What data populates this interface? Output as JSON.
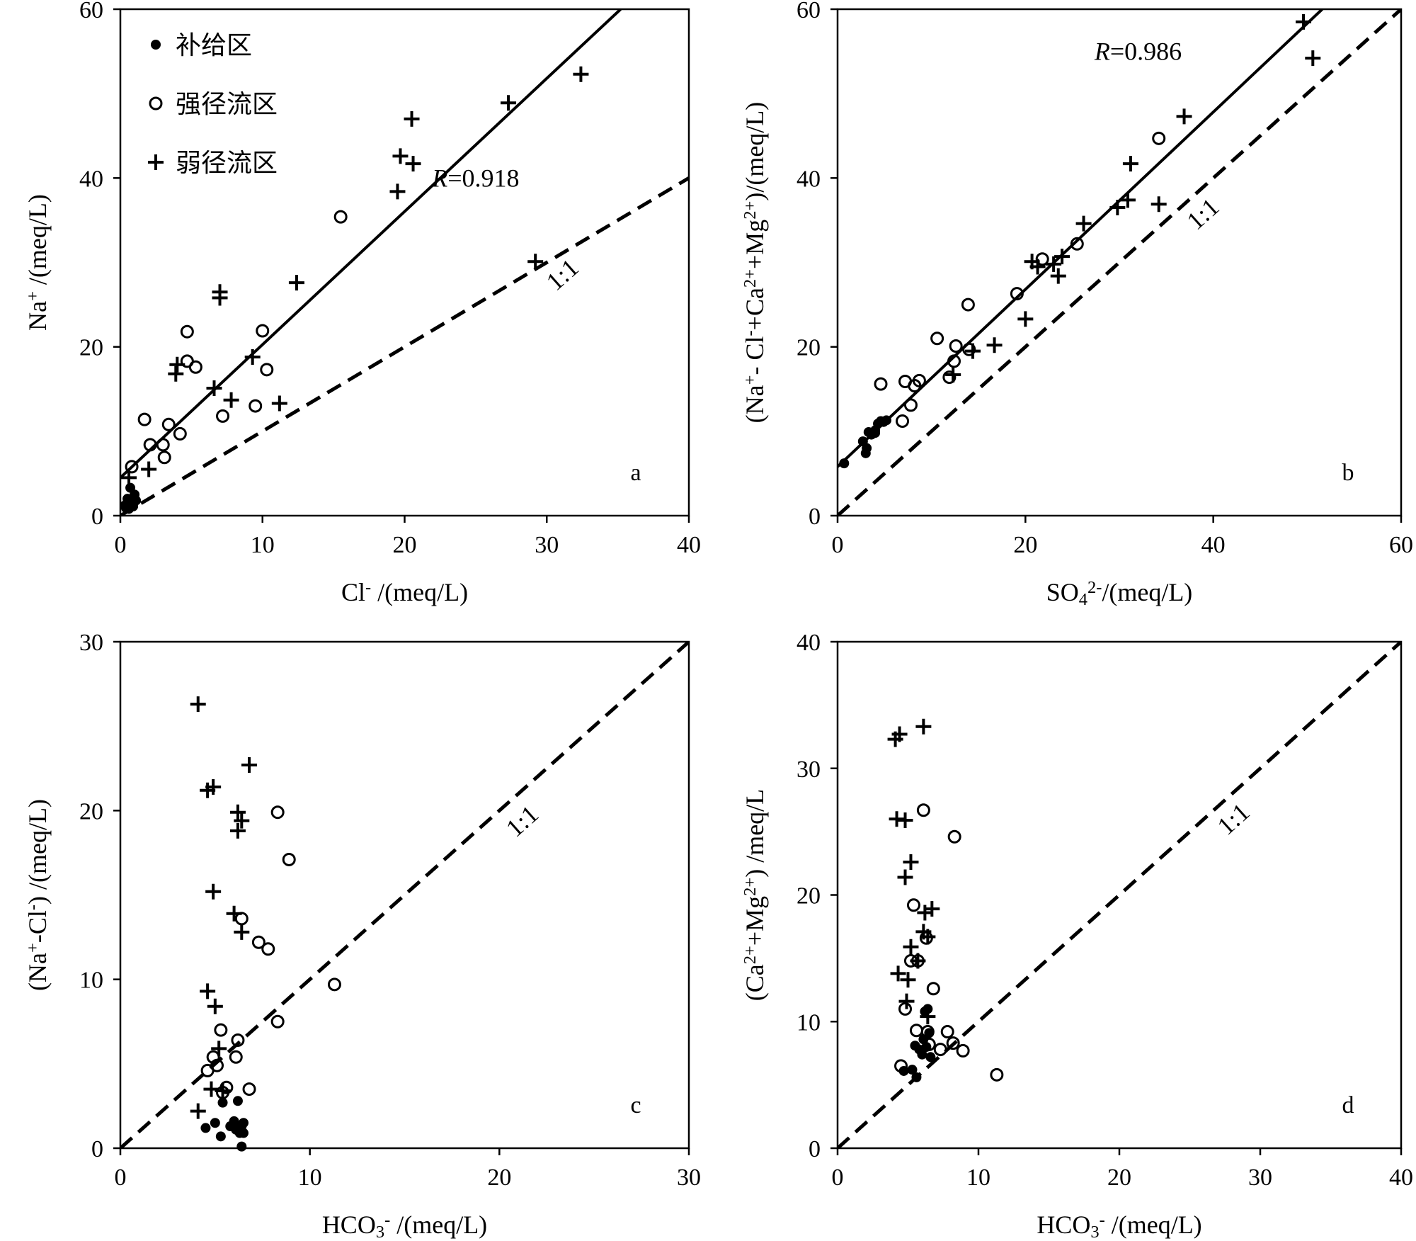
{
  "chart_data": [
    {
      "id": "a",
      "type": "scatter",
      "panel_label": "a",
      "xlabel": "Cl⁻ /(meq/L)",
      "ylabel": "Na⁺ /(meq/L)",
      "xlim": [
        0,
        40
      ],
      "ylim": [
        0,
        60
      ],
      "xticks": [
        "0",
        "10",
        "20",
        "30",
        "40"
      ],
      "yticks": [
        "0",
        "20",
        "40",
        "60"
      ],
      "legend": {
        "position": "top-left",
        "items": [
          {
            "marker": "filled-circle",
            "label": "补给区"
          },
          {
            "marker": "open-circle",
            "label": "强径流区"
          },
          {
            "marker": "plus",
            "label": "弱径流区"
          }
        ]
      },
      "annotations": [
        {
          "text": "R=0.918",
          "x": 25.0,
          "y": 39.0
        },
        {
          "text": "1:1",
          "x": 31.5,
          "y": 27.8,
          "rotate": true
        }
      ],
      "lines": [
        {
          "style": "solid",
          "x": [
            0,
            35.2
          ],
          "y": [
            4.5,
            60
          ]
        },
        {
          "style": "dashed",
          "x": [
            0,
            40
          ],
          "y": [
            0,
            40
          ]
        }
      ],
      "series": [
        {
          "marker": "filled-circle",
          "points": [
            [
              0.3,
              1.2
            ],
            [
              0.5,
              2.0
            ],
            [
              0.6,
              0.8
            ],
            [
              0.8,
              1.6
            ],
            [
              0.7,
              3.3
            ],
            [
              1.0,
              2.5
            ],
            [
              1.1,
              1.8
            ],
            [
              0.4,
              0.9
            ],
            [
              0.9,
              1.1
            ],
            [
              0.5,
              1.5
            ]
          ]
        },
        {
          "marker": "open-circle",
          "points": [
            [
              0.8,
              5.8
            ],
            [
              1.7,
              11.4
            ],
            [
              2.1,
              8.4
            ],
            [
              3.0,
              8.4
            ],
            [
              3.1,
              6.9
            ],
            [
              3.4,
              10.8
            ],
            [
              4.2,
              9.7
            ],
            [
              4.7,
              18.3
            ],
            [
              4.7,
              21.8
            ],
            [
              5.3,
              17.6
            ],
            [
              7.2,
              11.8
            ],
            [
              9.5,
              13.0
            ],
            [
              10.0,
              21.9
            ],
            [
              10.3,
              17.3
            ],
            [
              15.5,
              35.4
            ]
          ]
        },
        {
          "marker": "plus",
          "points": [
            [
              0.6,
              4.5
            ],
            [
              2.0,
              5.5
            ],
            [
              3.9,
              16.8
            ],
            [
              4.0,
              17.9
            ],
            [
              6.6,
              15.1
            ],
            [
              7.0,
              25.8
            ],
            [
              7.0,
              26.5
            ],
            [
              7.8,
              13.7
            ],
            [
              9.3,
              18.8
            ],
            [
              11.2,
              13.3
            ],
            [
              12.4,
              27.6
            ],
            [
              19.5,
              38.4
            ],
            [
              19.7,
              42.6
            ],
            [
              20.5,
              47.0
            ],
            [
              20.6,
              41.7
            ],
            [
              27.3,
              48.9
            ],
            [
              29.2,
              30.1
            ],
            [
              32.4,
              52.3
            ]
          ]
        }
      ]
    },
    {
      "id": "b",
      "type": "scatter",
      "panel_label": "b",
      "xlabel": "SO₄²⁻/(meq/L)",
      "ylabel": "(Na⁺- Cl⁻+Ca²⁺+Mg²⁺)/(meq/L)",
      "xlim": [
        0,
        60
      ],
      "ylim": [
        0,
        60
      ],
      "xticks": [
        "0",
        "20",
        "40",
        "60"
      ],
      "yticks": [
        "0",
        "20",
        "40",
        "60"
      ],
      "annotations": [
        {
          "text": "R=0.986",
          "x": 32.0,
          "y": 54.0
        },
        {
          "text": "1:1",
          "x": 39.5,
          "y": 35.0,
          "rotate": true
        }
      ],
      "lines": [
        {
          "style": "solid",
          "x": [
            0,
            51.6
          ],
          "y": [
            5.8,
            60
          ]
        },
        {
          "style": "dashed",
          "x": [
            0,
            60
          ],
          "y": [
            0,
            60
          ]
        }
      ],
      "series": [
        {
          "marker": "filled-circle",
          "points": [
            [
              0.7,
              6.2
            ],
            [
              2.7,
              8.8
            ],
            [
              3.0,
              7.4
            ],
            [
              3.1,
              8.0
            ],
            [
              3.3,
              9.9
            ],
            [
              3.6,
              9.6
            ],
            [
              4.0,
              10.1
            ],
            [
              4.3,
              10.9
            ],
            [
              4.6,
              11.2
            ],
            [
              4.9,
              11.1
            ],
            [
              5.2,
              11.3
            ],
            [
              4.0,
              9.8
            ]
          ]
        },
        {
          "marker": "open-circle",
          "points": [
            [
              4.6,
              15.6
            ],
            [
              6.9,
              11.2
            ],
            [
              7.2,
              15.9
            ],
            [
              7.8,
              13.1
            ],
            [
              8.2,
              15.4
            ],
            [
              8.7,
              16.0
            ],
            [
              10.6,
              21.0
            ],
            [
              11.9,
              16.4
            ],
            [
              12.4,
              18.3
            ],
            [
              12.6,
              20.1
            ],
            [
              13.9,
              25.0
            ],
            [
              14.0,
              19.7
            ],
            [
              19.1,
              26.3
            ],
            [
              21.8,
              30.4
            ],
            [
              25.5,
              32.2
            ],
            [
              34.2,
              44.7
            ]
          ]
        },
        {
          "marker": "plus",
          "points": [
            [
              12.3,
              16.7
            ],
            [
              14.4,
              19.5
            ],
            [
              16.7,
              20.2
            ],
            [
              20.0,
              23.3
            ],
            [
              20.7,
              30.1
            ],
            [
              21.3,
              29.5
            ],
            [
              23.0,
              29.8
            ],
            [
              23.5,
              28.4
            ],
            [
              23.9,
              30.7
            ],
            [
              26.2,
              34.6
            ],
            [
              29.8,
              36.5
            ],
            [
              30.9,
              37.4
            ],
            [
              31.2,
              41.7
            ],
            [
              34.2,
              36.9
            ],
            [
              36.9,
              47.3
            ],
            [
              49.6,
              58.5
            ],
            [
              50.6,
              54.2
            ]
          ]
        }
      ]
    },
    {
      "id": "c",
      "type": "scatter",
      "panel_label": "c",
      "xlabel": "HCO₃⁻ /(meq/L)",
      "ylabel": "(Na⁺-Cl⁻) /(meq/L)",
      "xlim": [
        0,
        30
      ],
      "ylim": [
        0,
        30
      ],
      "xticks": [
        "0",
        "10",
        "20",
        "30"
      ],
      "yticks": [
        "0",
        "10",
        "20",
        "30"
      ],
      "annotations": [
        {
          "text": "1:1",
          "x": 21.5,
          "y": 19.0,
          "rotate": true
        }
      ],
      "lines": [
        {
          "style": "dashed",
          "x": [
            0,
            30
          ],
          "y": [
            0,
            30
          ]
        }
      ],
      "series": [
        {
          "marker": "filled-circle",
          "points": [
            [
              4.5,
              1.2
            ],
            [
              5.0,
              1.5
            ],
            [
              5.3,
              0.7
            ],
            [
              5.4,
              2.7
            ],
            [
              5.8,
              1.3
            ],
            [
              6.0,
              1.6
            ],
            [
              6.1,
              1.1
            ],
            [
              6.2,
              2.8
            ],
            [
              6.3,
              0.9
            ],
            [
              6.4,
              1.3
            ],
            [
              6.5,
              0.9
            ],
            [
              6.5,
              1.5
            ],
            [
              6.4,
              0.1
            ]
          ]
        },
        {
          "marker": "open-circle",
          "points": [
            [
              4.6,
              4.6
            ],
            [
              4.9,
              5.4
            ],
            [
              5.1,
              4.9
            ],
            [
              5.4,
              3.3
            ],
            [
              5.3,
              7.0
            ],
            [
              5.6,
              3.6
            ],
            [
              6.1,
              5.4
            ],
            [
              6.2,
              6.4
            ],
            [
              6.4,
              13.6
            ],
            [
              6.8,
              3.5
            ],
            [
              7.3,
              12.2
            ],
            [
              7.8,
              11.8
            ],
            [
              8.3,
              7.5
            ],
            [
              8.3,
              19.9
            ],
            [
              8.9,
              17.1
            ],
            [
              11.3,
              9.7
            ]
          ]
        },
        {
          "marker": "plus",
          "points": [
            [
              4.1,
              26.3
            ],
            [
              4.6,
              21.2
            ],
            [
              4.9,
              21.4
            ],
            [
              4.9,
              15.2
            ],
            [
              5.0,
              8.4
            ],
            [
              5.2,
              5.9
            ],
            [
              4.6,
              9.3
            ],
            [
              4.8,
              3.5
            ],
            [
              4.1,
              2.2
            ],
            [
              5.4,
              3.4
            ],
            [
              6.0,
              13.9
            ],
            [
              6.2,
              19.9
            ],
            [
              6.2,
              18.8
            ],
            [
              6.4,
              19.4
            ],
            [
              6.4,
              12.8
            ],
            [
              6.8,
              22.7
            ]
          ]
        }
      ]
    },
    {
      "id": "d",
      "type": "scatter",
      "panel_label": "d",
      "xlabel": "HCO₃⁻ /(meq/L)",
      "ylabel": "(Ca²⁺+Mg²⁺) /meq/L",
      "xlim": [
        0,
        40
      ],
      "ylim": [
        0,
        40
      ],
      "xticks": [
        "0",
        "10",
        "20",
        "30",
        "40"
      ],
      "yticks": [
        "0",
        "10",
        "20",
        "30",
        "40"
      ],
      "annotations": [
        {
          "text": "1:1",
          "x": 28.5,
          "y": 25.5,
          "rotate": true
        }
      ],
      "lines": [
        {
          "style": "dashed",
          "x": [
            0,
            40
          ],
          "y": [
            0,
            40
          ]
        }
      ],
      "series": [
        {
          "marker": "filled-circle",
          "points": [
            [
              4.7,
              6.1
            ],
            [
              5.3,
              6.2
            ],
            [
              5.5,
              8.1
            ],
            [
              5.6,
              5.6
            ],
            [
              5.8,
              7.8
            ],
            [
              6.0,
              7.4
            ],
            [
              6.1,
              8.6
            ],
            [
              6.2,
              10.8
            ],
            [
              6.3,
              8.0
            ],
            [
              6.4,
              11.0
            ],
            [
              6.5,
              9.1
            ],
            [
              6.6,
              7.2
            ]
          ]
        },
        {
          "marker": "open-circle",
          "points": [
            [
              4.5,
              6.5
            ],
            [
              4.8,
              11.0
            ],
            [
              5.2,
              14.8
            ],
            [
              5.4,
              19.2
            ],
            [
              5.6,
              9.3
            ],
            [
              5.7,
              14.8
            ],
            [
              6.1,
              26.7
            ],
            [
              6.3,
              16.6
            ],
            [
              6.4,
              9.2
            ],
            [
              6.5,
              8.2
            ],
            [
              6.8,
              12.6
            ],
            [
              7.3,
              7.8
            ],
            [
              7.8,
              9.2
            ],
            [
              8.2,
              8.3
            ],
            [
              8.3,
              24.6
            ],
            [
              8.9,
              7.7
            ],
            [
              11.3,
              5.8
            ]
          ]
        },
        {
          "marker": "plus",
          "points": [
            [
              4.1,
              32.3
            ],
            [
              4.4,
              32.7
            ],
            [
              4.2,
              26.0
            ],
            [
              4.8,
              25.9
            ],
            [
              4.8,
              21.4
            ],
            [
              5.2,
              22.6
            ],
            [
              4.3,
              13.8
            ],
            [
              5.0,
              13.3
            ],
            [
              4.9,
              11.6
            ],
            [
              5.2,
              15.9
            ],
            [
              5.7,
              14.8
            ],
            [
              6.1,
              33.3
            ],
            [
              6.1,
              17.1
            ],
            [
              6.2,
              18.6
            ],
            [
              6.4,
              16.7
            ],
            [
              6.7,
              18.9
            ],
            [
              6.4,
              10.4
            ]
          ]
        }
      ]
    }
  ]
}
